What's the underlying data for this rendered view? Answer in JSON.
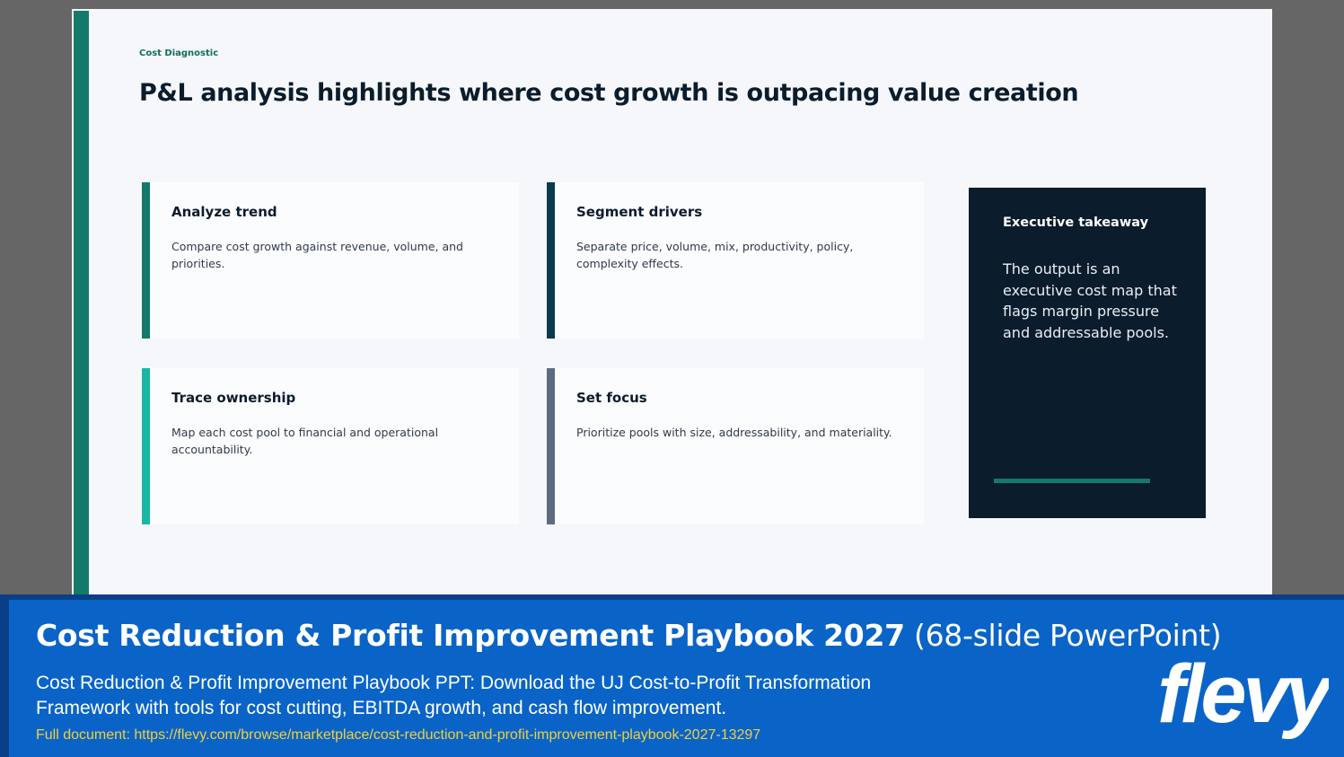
{
  "slide": {
    "eyebrow": "Cost Diagnostic",
    "title": "P&L analysis highlights where cost growth is outpacing value creation",
    "cards": [
      {
        "title": "Analyze trend",
        "body": "Compare cost growth against revenue, volume, and priorities.",
        "accent": "#137a6b"
      },
      {
        "title": "Segment drivers",
        "body": "Separate price, volume, mix, productivity, policy, complexity effects.",
        "accent": "#0b3a4e"
      },
      {
        "title": "Trace ownership",
        "body": "Map each cost pool to financial and operational accountability.",
        "accent": "#18b7a3"
      },
      {
        "title": "Set focus",
        "body": "Prioritize pools with size, addressability, and materiality.",
        "accent": "#5d6b80"
      }
    ],
    "takeaway": {
      "title": "Executive takeaway",
      "body": "The output is an executive cost map that flags margin pressure and addressable pools."
    }
  },
  "banner": {
    "title": "Cost Reduction & Profit Improvement Playbook 2027",
    "subtitle": "(68-slide PowerPoint)",
    "description": "Cost Reduction & Profit Improvement Playbook PPT: Download the UJ Cost-to-Profit Transformation Framework with tools for cost cutting, EBITDA growth, and cash flow improvement.",
    "link": "Full document: https://flevy.com/browse/marketplace/cost-reduction-and-profit-improvement-playbook-2027-13297",
    "logo_text": "flevy"
  },
  "colors": {
    "teal": "#137a6b",
    "navy": "#0b1c2c",
    "banner_blue": "#0a64c8",
    "link_yellow": "#f2cf3a"
  }
}
